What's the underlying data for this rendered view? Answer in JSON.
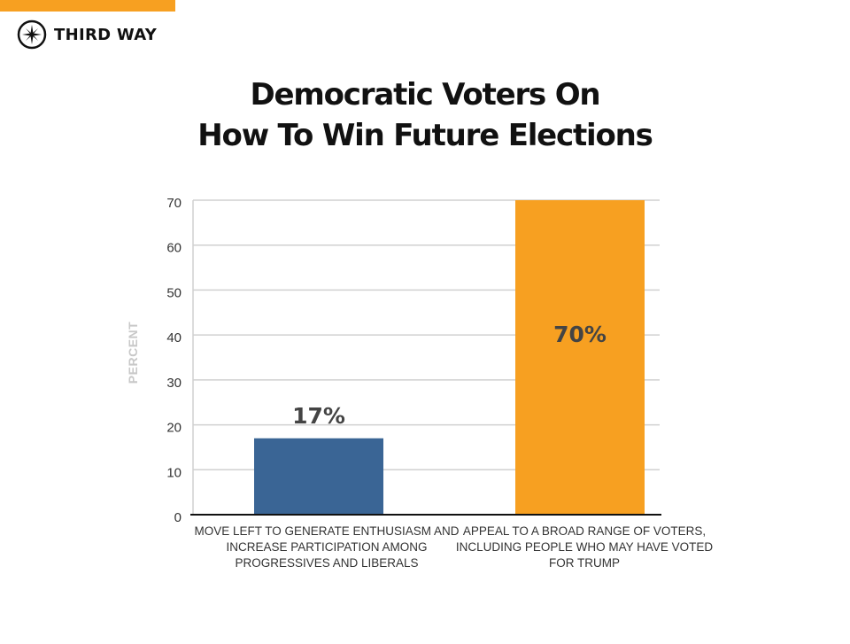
{
  "brand": {
    "name": "THIRD WAY",
    "accent": "#f7a021"
  },
  "chart_data": {
    "type": "bar",
    "title": "Democratic Voters On How To Win Future Elections",
    "title_lines": [
      "Democratic Voters On",
      "How To Win Future Elections"
    ],
    "ylabel": "PERCENT",
    "xlabel": "",
    "ylim": [
      0,
      70
    ],
    "yticks": [
      0,
      10,
      20,
      30,
      40,
      50,
      60,
      70
    ],
    "grid": true,
    "categories": [
      "MOVE LEFT TO GENERATE  ENTHUSIASM AND INCREASE PARTICIPATION AMONG PROGRESSIVES AND LIBERALS",
      "APPEAL TO A BROAD RANGE OF VOTERS, INCLUDING PEOPLE WHO MAY HAVE VOTED FOR TRUMP"
    ],
    "values": [
      17,
      70
    ],
    "data_labels": [
      "17%",
      "70%"
    ],
    "colors": [
      "#3a6595",
      "#f7a021"
    ]
  }
}
